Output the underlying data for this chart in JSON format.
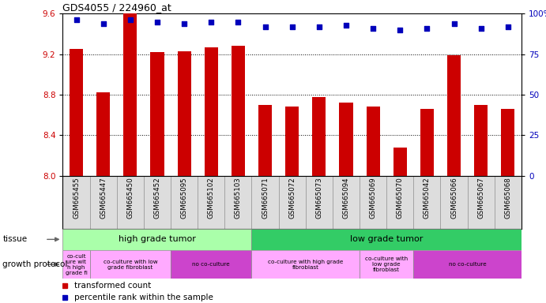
{
  "title": "GDS4055 / 224960_at",
  "samples": [
    "GSM665455",
    "GSM665447",
    "GSM665450",
    "GSM665452",
    "GSM665095",
    "GSM665102",
    "GSM665103",
    "GSM665071",
    "GSM665072",
    "GSM665073",
    "GSM665094",
    "GSM665069",
    "GSM665070",
    "GSM665042",
    "GSM665066",
    "GSM665067",
    "GSM665068"
  ],
  "transformed_counts": [
    9.25,
    8.82,
    9.6,
    9.22,
    9.23,
    9.27,
    9.28,
    8.7,
    8.68,
    8.78,
    8.72,
    8.68,
    8.28,
    8.66,
    9.19,
    8.7,
    8.66
  ],
  "percentile_ranks": [
    96,
    94,
    96,
    95,
    94,
    95,
    95,
    92,
    92,
    92,
    93,
    91,
    90,
    91,
    94,
    91,
    92
  ],
  "ylim_left": [
    8.0,
    9.6
  ],
  "ylim_right": [
    0,
    100
  ],
  "yticks_left": [
    8.0,
    8.4,
    8.8,
    9.2,
    9.6
  ],
  "yticks_right": [
    0,
    25,
    50,
    75,
    100
  ],
  "ytick_labels_right": [
    "0",
    "25",
    "50",
    "75",
    "100%"
  ],
  "bar_color": "#CC0000",
  "dot_color": "#0000BB",
  "tissue_groups": [
    {
      "label": "high grade tumor",
      "start": 0,
      "end": 7,
      "color": "#AAFFAA"
    },
    {
      "label": "low grade tumor",
      "start": 7,
      "end": 17,
      "color": "#33CC66"
    }
  ],
  "growth_groups": [
    {
      "label": "co-cult\nure wit\nh high\ngrade fi",
      "start": 0,
      "end": 1,
      "color": "#FFAAFF"
    },
    {
      "label": "co-culture with low\ngrade fibroblast",
      "start": 1,
      "end": 4,
      "color": "#FFAAFF"
    },
    {
      "label": "no co-culture",
      "start": 4,
      "end": 7,
      "color": "#CC44CC"
    },
    {
      "label": "co-culture with high grade\nfibroblast",
      "start": 7,
      "end": 11,
      "color": "#FFAAFF"
    },
    {
      "label": "co-culture with\nlow grade\nfibroblast",
      "start": 11,
      "end": 13,
      "color": "#FFAAFF"
    },
    {
      "label": "no co-culture",
      "start": 13,
      "end": 17,
      "color": "#CC44CC"
    }
  ],
  "legend_items": [
    {
      "label": "transformed count",
      "color": "#CC0000"
    },
    {
      "label": "percentile rank within the sample",
      "color": "#0000BB"
    }
  ],
  "bg_color": "#FFFFFF",
  "xtick_bg": "#DDDDDD"
}
